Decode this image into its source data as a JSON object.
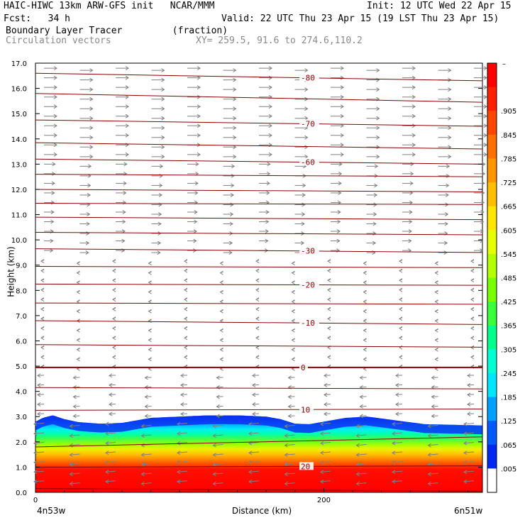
{
  "header": {
    "line1_left": "HAIC-HIWC 13km ARW-GFS init   NCAR/MMM",
    "line1_right": "Init: 12 UTC Wed 22 Apr 15",
    "line2_left": "Fcst:   34 h",
    "line2_right": "Valid: 22 UTC Thu 23 Apr 15 (19 LST Thu 23 Apr 15)",
    "line3_left": "Boundary Layer Tracer         (fraction)",
    "line4_left": "Circulation vectors",
    "line4_right": "XY= 259.5, 91.6 to 274.6,110.2"
  },
  "chart_data": {
    "type": "heatmap",
    "title": "Boundary Layer Tracer",
    "units": "(fraction)",
    "overlay": "Circulation vectors",
    "xlabel": "Distance (km)",
    "ylabel": "Height (km)",
    "xlim": [
      0,
      310
    ],
    "ylim": [
      0,
      17
    ],
    "x_ticks": [
      "0",
      "200"
    ],
    "y_ticks": [
      "0.0",
      "1.0",
      "2.0",
      "3.0",
      "4.0",
      "5.0",
      "6.0",
      "7.0",
      "8.0",
      "9.0",
      "10.0",
      "11.0",
      "12.0",
      "13.0",
      "14.0",
      "15.0",
      "16.0",
      "17.0"
    ],
    "x_endpoints": {
      "left": "4n53w",
      "right": "6n51w"
    },
    "colorbar": {
      "labels": [
        ".905",
        ".845",
        ".785",
        ".725",
        ".665",
        ".605",
        ".545",
        ".485",
        ".425",
        ".365",
        ".305",
        ".245",
        ".185",
        ".125",
        ".065",
        ".005"
      ],
      "top_label": "–",
      "colors": [
        "#ff0000",
        "#ff2000",
        "#ff4600",
        "#ff6e00",
        "#ff9600",
        "#ffbe00",
        "#ffe600",
        "#e6ff00",
        "#b4ff00",
        "#78ff00",
        "#3cff3c",
        "#00ff8c",
        "#00ffd2",
        "#00e6ff",
        "#00a0ff",
        "#005aff",
        "#0028f0",
        "#ffffff"
      ]
    },
    "tracer_top_km": [
      [
        0,
        2.8
      ],
      [
        5,
        2.95
      ],
      [
        12,
        3.05
      ],
      [
        20,
        2.9
      ],
      [
        30,
        2.78
      ],
      [
        45,
        2.72
      ],
      [
        60,
        2.75
      ],
      [
        70,
        2.85
      ],
      [
        80,
        2.95
      ],
      [
        100,
        3.0
      ],
      [
        120,
        3.05
      ],
      [
        140,
        3.05
      ],
      [
        160,
        3.0
      ],
      [
        170,
        2.9
      ],
      [
        180,
        2.72
      ],
      [
        190,
        2.7
      ],
      [
        200,
        2.8
      ],
      [
        215,
        2.95
      ],
      [
        230,
        3.0
      ],
      [
        250,
        2.85
      ],
      [
        270,
        2.7
      ],
      [
        310,
        2.65
      ]
    ],
    "temperature_contours": [
      {
        "label": "-80",
        "y_left": 16.6,
        "y_right": 16.3
      },
      {
        "label": "",
        "y_left": 15.8,
        "y_right": 15.45
      },
      {
        "label": "-70",
        "y_left": 14.75,
        "y_right": 14.5
      },
      {
        "label": "",
        "y_left": 13.85,
        "y_right": 13.6
      },
      {
        "label": "-60",
        "y_left": 13.2,
        "y_right": 13.0
      },
      {
        "label": "",
        "y_left": 12.6,
        "y_right": 12.5
      },
      {
        "label": "",
        "y_left": 12.0,
        "y_right": 11.9
      },
      {
        "label": "",
        "y_left": 11.45,
        "y_right": 11.4
      },
      {
        "label": "",
        "y_left": 10.9,
        "y_right": 10.8
      },
      {
        "label": "",
        "y_left": 10.3,
        "y_right": 10.2
      },
      {
        "label": "-30",
        "y_left": 9.65,
        "y_right": 9.5
      },
      {
        "label": "",
        "y_left": 8.95,
        "y_right": 8.9
      },
      {
        "label": "-20",
        "y_left": 8.25,
        "y_right": 8.2
      },
      {
        "label": "",
        "y_left": 7.5,
        "y_right": 7.45
      },
      {
        "label": "-10",
        "y_left": 6.8,
        "y_right": 6.65
      },
      {
        "label": "",
        "y_left": 5.85,
        "y_right": 5.75
      },
      {
        "label": "0",
        "y_left": 4.95,
        "y_right": 4.95
      },
      {
        "label": "",
        "y_left": 4.15,
        "y_right": 4.1
      },
      {
        "label": "10",
        "y_left": 3.25,
        "y_right": 3.3
      },
      {
        "label": "",
        "y_left": 1.8,
        "y_right": 2.2
      },
      {
        "label": "20",
        "y_left": 1.0,
        "y_right": 1.05
      },
      {
        "label": "",
        "y_left": 0.15,
        "y_right": 0.05
      }
    ]
  }
}
